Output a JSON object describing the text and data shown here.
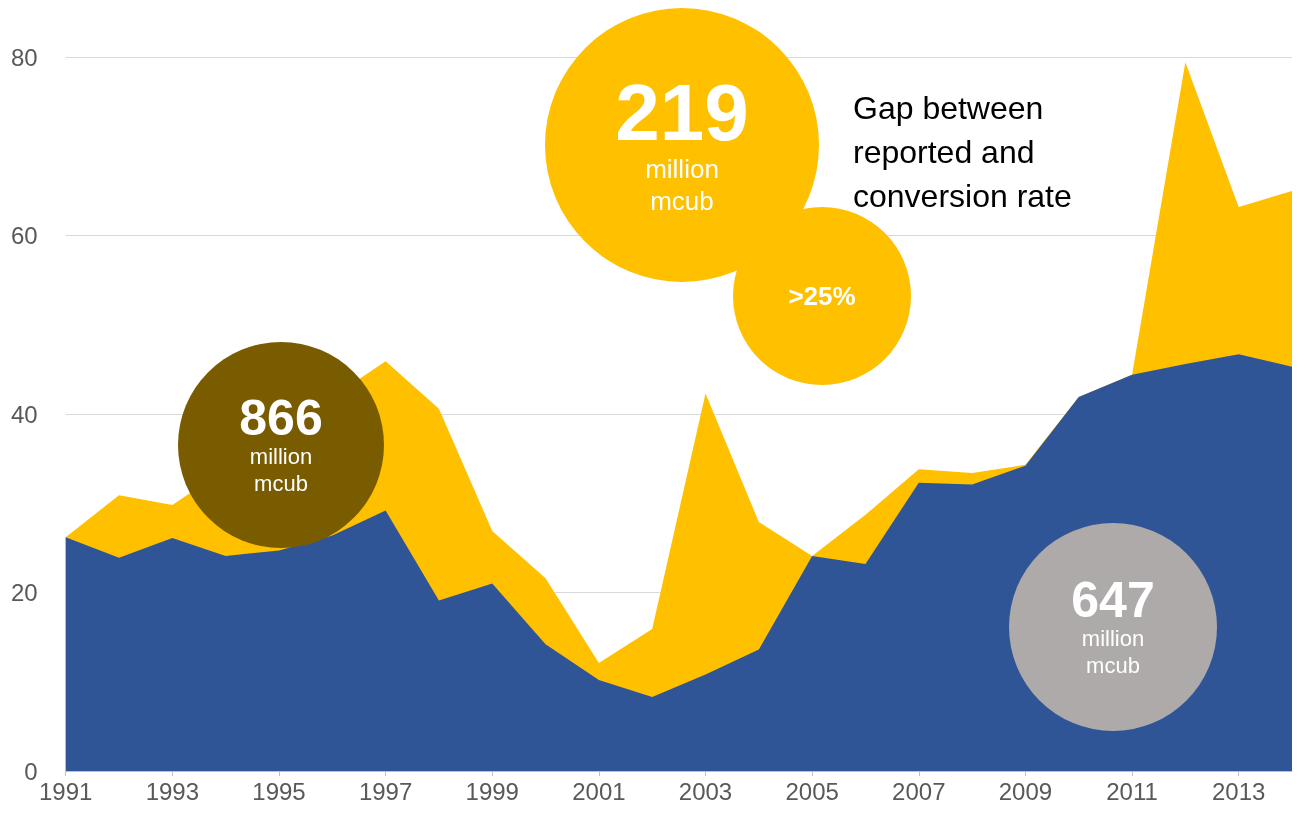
{
  "chart_data": {
    "type": "area",
    "stacked": true,
    "x": [
      1991,
      1992,
      1993,
      1994,
      1995,
      1996,
      1997,
      1998,
      1999,
      2000,
      2001,
      2002,
      2003,
      2004,
      2005,
      2006,
      2007,
      2008,
      2009,
      2010,
      2011,
      2012,
      2013,
      2014
    ],
    "series": [
      {
        "color": "#2f5597",
        "values": [
          26.2,
          23.9,
          26.1,
          24.1,
          24.7,
          26.4,
          29.2,
          19.1,
          21.0,
          14.2,
          10.2,
          8.3,
          10.8,
          13.6,
          24.1,
          23.2,
          32.3,
          32.1,
          34.2,
          41.9,
          44.4,
          45.6,
          46.7,
          45.3
        ]
      },
      {
        "color": "#ffc000",
        "values": [
          0,
          7.0,
          3.7,
          null,
          null,
          null,
          16.7,
          21.5,
          5.9,
          7.4,
          1.9,
          7.6,
          31.5,
          14.3,
          0,
          5.5,
          1.5,
          1.3,
          0.1,
          0,
          0,
          33.8,
          16.5,
          19.7
        ]
      }
    ],
    "xlim": [
      1991,
      2014
    ],
    "xticks": [
      1991,
      1993,
      1995,
      1997,
      1999,
      2001,
      2003,
      2005,
      2007,
      2009,
      2011,
      2013
    ],
    "ylim": [
      0,
      80
    ],
    "yticks": [
      0,
      20,
      40,
      60,
      80
    ],
    "grid": "y",
    "annotations": [
      "219 million mcub",
      ">25%",
      "866 million mcub",
      "647 million mcub",
      "Gap between reported and conversion rate"
    ]
  }
}
